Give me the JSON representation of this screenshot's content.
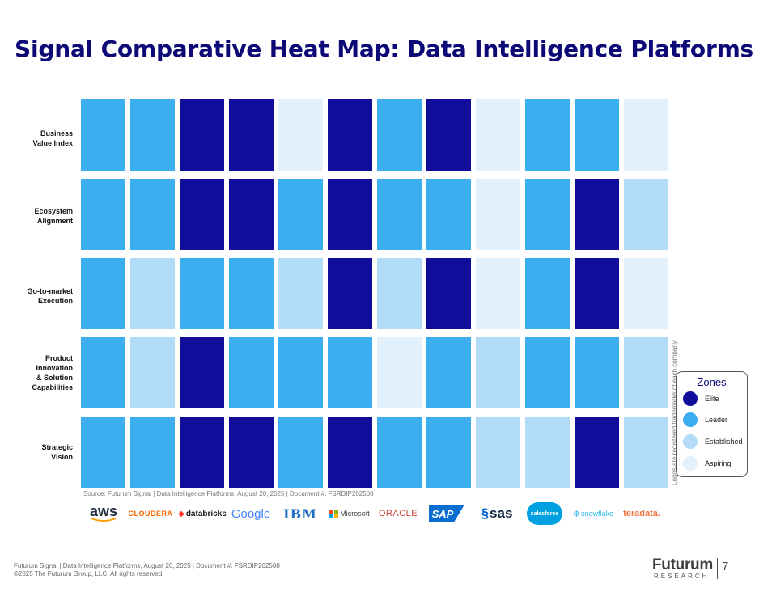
{
  "title": "Signal Comparative Heat Map: Data Intelligence Platforms",
  "colors": {
    "Elite": "#0f0d9a",
    "Leader": "#3aaeef",
    "Established": "#b2dcf7",
    "Aspiring": "#e3f1fd",
    "title": "#0d0a78"
  },
  "chart_data": {
    "type": "heatmap",
    "rows": [
      [
        "Business",
        "Value Index"
      ],
      [
        "Ecosystem",
        "Alignment"
      ],
      [
        "Go-to-market",
        "Execution"
      ],
      [
        "Product",
        "Innovation",
        "& Solution",
        "Capabilities"
      ],
      [
        "Strategic",
        "Vision"
      ]
    ],
    "columns": [
      "aws",
      "CLOUDERA",
      "databricks",
      "Google",
      "IBM",
      "Microsoft",
      "ORACLE",
      "SAP",
      "sas",
      "salesforce",
      "snowflake",
      "teradata."
    ],
    "values": [
      [
        "Leader",
        "Leader",
        "Elite",
        "Elite",
        "Aspiring",
        "Elite",
        "Leader",
        "Elite",
        "Aspiring",
        "Leader",
        "Leader",
        "Aspiring"
      ],
      [
        "Leader",
        "Leader",
        "Elite",
        "Elite",
        "Leader",
        "Elite",
        "Leader",
        "Leader",
        "Aspiring",
        "Leader",
        "Elite",
        "Established"
      ],
      [
        "Leader",
        "Established",
        "Leader",
        "Leader",
        "Established",
        "Elite",
        "Established",
        "Elite",
        "Aspiring",
        "Leader",
        "Elite",
        "Aspiring"
      ],
      [
        "Leader",
        "Established",
        "Elite",
        "Leader",
        "Leader",
        "Leader",
        "Aspiring",
        "Leader",
        "Established",
        "Leader",
        "Leader",
        "Established"
      ],
      [
        "Leader",
        "Leader",
        "Elite",
        "Elite",
        "Leader",
        "Elite",
        "Leader",
        "Leader",
        "Established",
        "Established",
        "Elite",
        "Established"
      ]
    ],
    "legend": {
      "title": "Zones",
      "position": "right",
      "items": [
        "Elite",
        "Leader",
        "Established",
        "Aspiring"
      ]
    }
  },
  "side_note": "Logos are registered trademarks of each company",
  "source": "Source: Futurum Signal | Data Intelligence Platforms, August 20, 2025 | Document #: FSRDIP202508",
  "footer": {
    "line1": "Futurum Signal | Data Intelligence Platforms, August 20, 2025 | Document #: FSRDIP202508",
    "line2": "©2025 The Futurum Group, LLC. All rights reserved.",
    "brand": "Futurum",
    "brand_sub": "RESEARCH",
    "page": "7"
  }
}
